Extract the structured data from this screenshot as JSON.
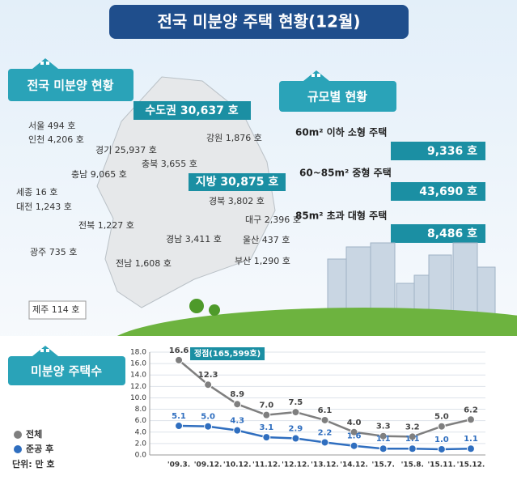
{
  "header": {
    "title": "전국 미분양 주택 현황(12월)"
  },
  "map": {
    "title": "전국 미분양 현황",
    "capital_area": "수도권 30,637 호",
    "provinces": "지방 30,875 호",
    "regions": [
      "서울 494 호",
      "인천 4,206 호",
      "경기 25,937 호",
      "충북 3,655 호",
      "충남 9,065 호",
      "세종 16 호",
      "대전 1,243 호",
      "전북 1,227 호",
      "광주 735 호",
      "전남 1,608 호",
      "강원 1,876 호",
      "경북 3,802 호",
      "대구 2,396 호",
      "경남 3,411 호",
      "울산 437 호",
      "부산 1,290 호",
      "제주 114 호"
    ]
  },
  "size": {
    "title": "규모별 현황",
    "items": [
      {
        "label": "60m² 이하 소형 주택",
        "value": "9,336 호"
      },
      {
        "label": "60~85m²  중형 주택",
        "value": "43,690 호"
      },
      {
        "label": "85m² 초과 대형 주택",
        "value": "8,486 호"
      }
    ]
  },
  "chart_data": {
    "type": "line",
    "title": "미분양 주택수",
    "unit_label": "단위: 만 호",
    "annotation": "정점(165,599호)",
    "categories": [
      "'09.3.",
      "'09.12.",
      "'10.12.",
      "'11.12.",
      "'12.12.",
      "'13.12.",
      "'14.12.",
      "'15.7.",
      "'15.8.",
      "'15.11.",
      "'15.12."
    ],
    "series": [
      {
        "name": "전체",
        "color": "#7f7f7f",
        "values": [
          16.6,
          12.3,
          8.9,
          7.0,
          7.5,
          6.1,
          4.0,
          3.3,
          3.2,
          5.0,
          6.2
        ],
        "value_labels": [
          "16.6",
          "12.3",
          "8.9",
          "7.0",
          "7.5",
          "6.1",
          "4.0",
          "3.3",
          "3.2",
          "5.0",
          "6.2"
        ]
      },
      {
        "name": "준공 후",
        "color": "#2f6ebf",
        "values": [
          5.1,
          5.0,
          4.3,
          3.1,
          2.9,
          2.2,
          1.6,
          1.1,
          1.1,
          1.0,
          1.1
        ],
        "value_labels": [
          "5.1",
          "5.0",
          "4.3",
          "3.1",
          "2.9",
          "2.2",
          "1.6",
          "1.1",
          "1.1",
          "1.0",
          "1.1"
        ]
      }
    ],
    "ylim": [
      0,
      18
    ],
    "yticks": [
      {
        "value": 0,
        "label": "0.0"
      },
      {
        "value": 2,
        "label": "2.0"
      },
      {
        "value": 4,
        "label": "4.0"
      },
      {
        "value": 6,
        "label": "6.0"
      },
      {
        "value": 8,
        "label": "8.0"
      },
      {
        "value": 10,
        "label": "10.0"
      },
      {
        "value": 12,
        "label": "12.0"
      },
      {
        "value": 14,
        "label": "14.0"
      },
      {
        "value": 16,
        "label": "16.0"
      },
      {
        "value": 18,
        "label": "18.0"
      }
    ],
    "grid": true
  }
}
